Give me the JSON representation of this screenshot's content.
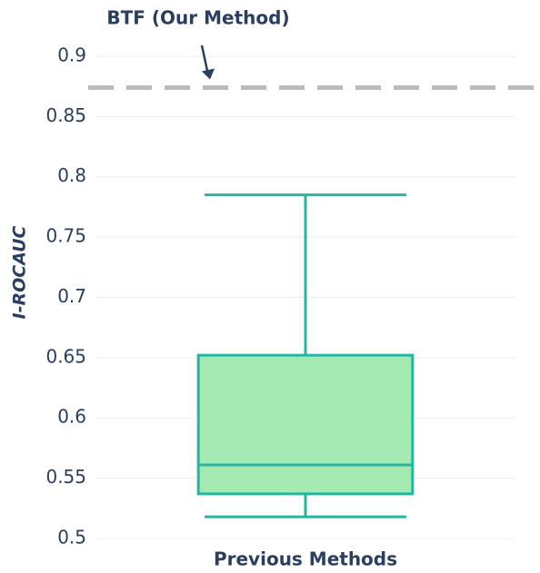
{
  "chart_data": {
    "type": "box",
    "categories": [
      "Previous Methods"
    ],
    "series": [
      {
        "min": 0.518,
        "q1": 0.537,
        "median": 0.561,
        "q3": 0.652,
        "max": 0.785,
        "color": "#26b5a0",
        "fill": "#a3e9b1"
      }
    ],
    "ylabel": "I-ROCAUC",
    "ylim": [
      0.495,
      0.94
    ],
    "yticks": [
      0.5,
      0.55,
      0.6,
      0.65,
      0.7,
      0.75,
      0.8,
      0.85,
      0.9
    ],
    "grid": true,
    "annotation": {
      "text": "BTF (Our Method)",
      "value": 0.874,
      "color": "#bbbbbb"
    }
  }
}
